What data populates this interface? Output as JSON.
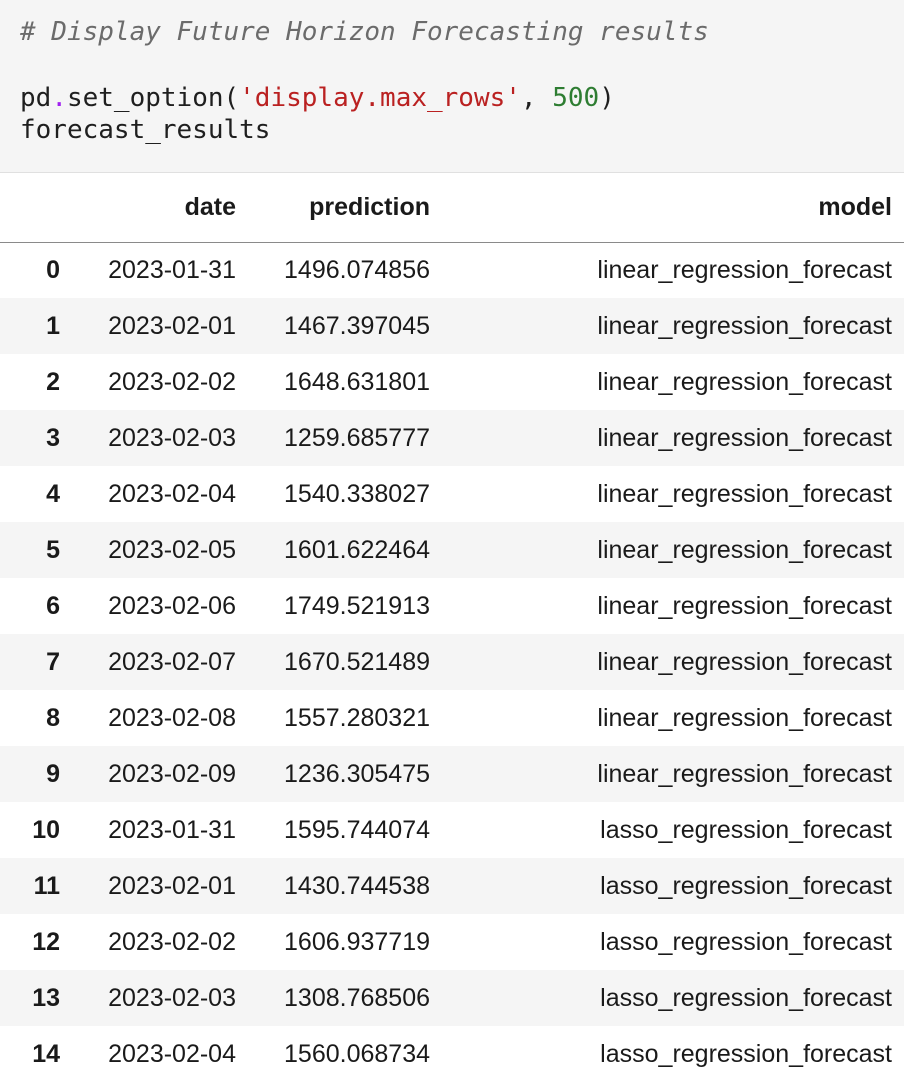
{
  "code_cell": {
    "comment": "# Display Future Horizon Forecasting results",
    "line2": {
      "obj": "pd",
      "dot": ".",
      "func": "set_option(",
      "arg_str": "'display.max_rows'",
      "sep": ", ",
      "arg_num": "500",
      "close": ")"
    },
    "line3": "forecast_results"
  },
  "table": {
    "columns": [
      "",
      "date",
      "prediction",
      "model"
    ],
    "rows": [
      {
        "index": "0",
        "date": "2023-01-31",
        "prediction": "1496.074856",
        "model": "linear_regression_forecast"
      },
      {
        "index": "1",
        "date": "2023-02-01",
        "prediction": "1467.397045",
        "model": "linear_regression_forecast"
      },
      {
        "index": "2",
        "date": "2023-02-02",
        "prediction": "1648.631801",
        "model": "linear_regression_forecast"
      },
      {
        "index": "3",
        "date": "2023-02-03",
        "prediction": "1259.685777",
        "model": "linear_regression_forecast"
      },
      {
        "index": "4",
        "date": "2023-02-04",
        "prediction": "1540.338027",
        "model": "linear_regression_forecast"
      },
      {
        "index": "5",
        "date": "2023-02-05",
        "prediction": "1601.622464",
        "model": "linear_regression_forecast"
      },
      {
        "index": "6",
        "date": "2023-02-06",
        "prediction": "1749.521913",
        "model": "linear_regression_forecast"
      },
      {
        "index": "7",
        "date": "2023-02-07",
        "prediction": "1670.521489",
        "model": "linear_regression_forecast"
      },
      {
        "index": "8",
        "date": "2023-02-08",
        "prediction": "1557.280321",
        "model": "linear_regression_forecast"
      },
      {
        "index": "9",
        "date": "2023-02-09",
        "prediction": "1236.305475",
        "model": "linear_regression_forecast"
      },
      {
        "index": "10",
        "date": "2023-01-31",
        "prediction": "1595.744074",
        "model": "lasso_regression_forecast"
      },
      {
        "index": "11",
        "date": "2023-02-01",
        "prediction": "1430.744538",
        "model": "lasso_regression_forecast"
      },
      {
        "index": "12",
        "date": "2023-02-02",
        "prediction": "1606.937719",
        "model": "lasso_regression_forecast"
      },
      {
        "index": "13",
        "date": "2023-02-03",
        "prediction": "1308.768506",
        "model": "lasso_regression_forecast"
      },
      {
        "index": "14",
        "date": "2023-02-04",
        "prediction": "1560.068734",
        "model": "lasso_regression_forecast"
      }
    ]
  }
}
